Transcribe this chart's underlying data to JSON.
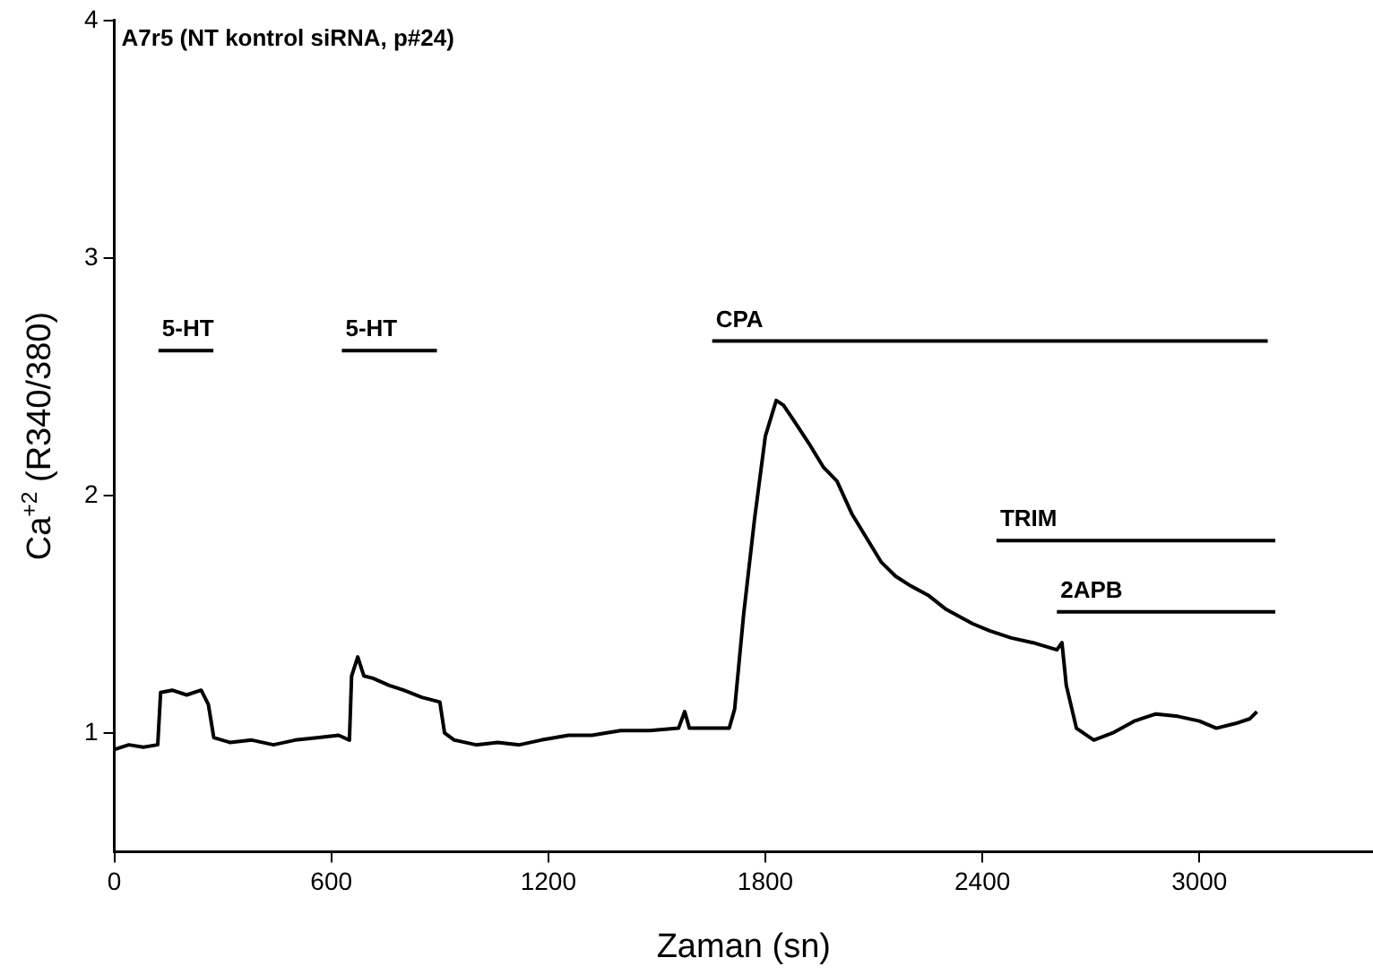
{
  "chart_data": {
    "type": "line",
    "title": "A7r5 (NT kontrol siRNA, p#24)",
    "xlabel": "Zaman (sn)",
    "ylabel": "Ca$^{+2}$ (R340/380)",
    "xlim": [
      0,
      3480
    ],
    "xticks": [
      0,
      600,
      1200,
      1800,
      2400,
      3000
    ],
    "ylim": [
      0.5,
      4
    ],
    "yticks": [
      1,
      2,
      3,
      4
    ],
    "grid": false,
    "legend": false,
    "marker": "none",
    "line_style": "solid",
    "series": [
      {
        "color": "#000000",
        "x": [
          0,
          40,
          80,
          120,
          128,
          160,
          200,
          240,
          260,
          275,
          320,
          380,
          440,
          500,
          560,
          620,
          650,
          656,
          673,
          690,
          715,
          760,
          800,
          850,
          900,
          913,
          940,
          1000,
          1060,
          1120,
          1180,
          1256,
          1320,
          1400,
          1480,
          1560,
          1577,
          1590,
          1640,
          1700,
          1715,
          1740,
          1770,
          1800,
          1830,
          1850,
          1881,
          1920,
          1960,
          1998,
          2040,
          2080,
          2120,
          2160,
          2201,
          2250,
          2300,
          2373,
          2420,
          2480,
          2540,
          2606,
          2620,
          2632,
          2660,
          2708,
          2760,
          2820,
          2880,
          2940,
          3000,
          3047,
          3100,
          3140,
          3159
        ],
        "values": [
          0.93,
          0.95,
          0.94,
          0.95,
          1.17,
          1.18,
          1.16,
          1.18,
          1.12,
          0.98,
          0.96,
          0.97,
          0.95,
          0.97,
          0.98,
          0.99,
          0.97,
          1.24,
          1.32,
          1.24,
          1.23,
          1.2,
          1.18,
          1.15,
          1.13,
          1.0,
          0.97,
          0.95,
          0.96,
          0.95,
          0.97,
          0.99,
          0.99,
          1.01,
          1.01,
          1.02,
          1.09,
          1.02,
          1.02,
          1.02,
          1.1,
          1.5,
          1.9,
          2.25,
          2.4,
          2.38,
          2.31,
          2.22,
          2.12,
          2.06,
          1.92,
          1.82,
          1.72,
          1.66,
          1.62,
          1.58,
          1.52,
          1.46,
          1.43,
          1.4,
          1.38,
          1.35,
          1.38,
          1.2,
          1.02,
          0.97,
          1.0,
          1.05,
          1.08,
          1.07,
          1.05,
          1.02,
          1.04,
          1.06,
          1.09
        ]
      },
      {
        "name": "5-HT",
        "color": "#000000",
        "x": [
          122,
          274
        ],
        "values": [
          2.61,
          2.61
        ]
      },
      {
        "name": "5-HT",
        "color": "#000000",
        "x": [
          629,
          892
        ],
        "values": [
          2.61,
          2.61
        ]
      },
      {
        "name": "CPA",
        "color": "#000000",
        "x": [
          1653,
          3189
        ],
        "values": [
          2.65,
          2.65
        ]
      },
      {
        "name": "TRIM",
        "color": "#000000",
        "x": [
          2439,
          3210
        ],
        "values": [
          1.81,
          1.81
        ]
      },
      {
        "name": "2APB",
        "color": "#000000",
        "x": [
          2606,
          3210
        ],
        "values": [
          1.51,
          1.51
        ]
      }
    ]
  }
}
